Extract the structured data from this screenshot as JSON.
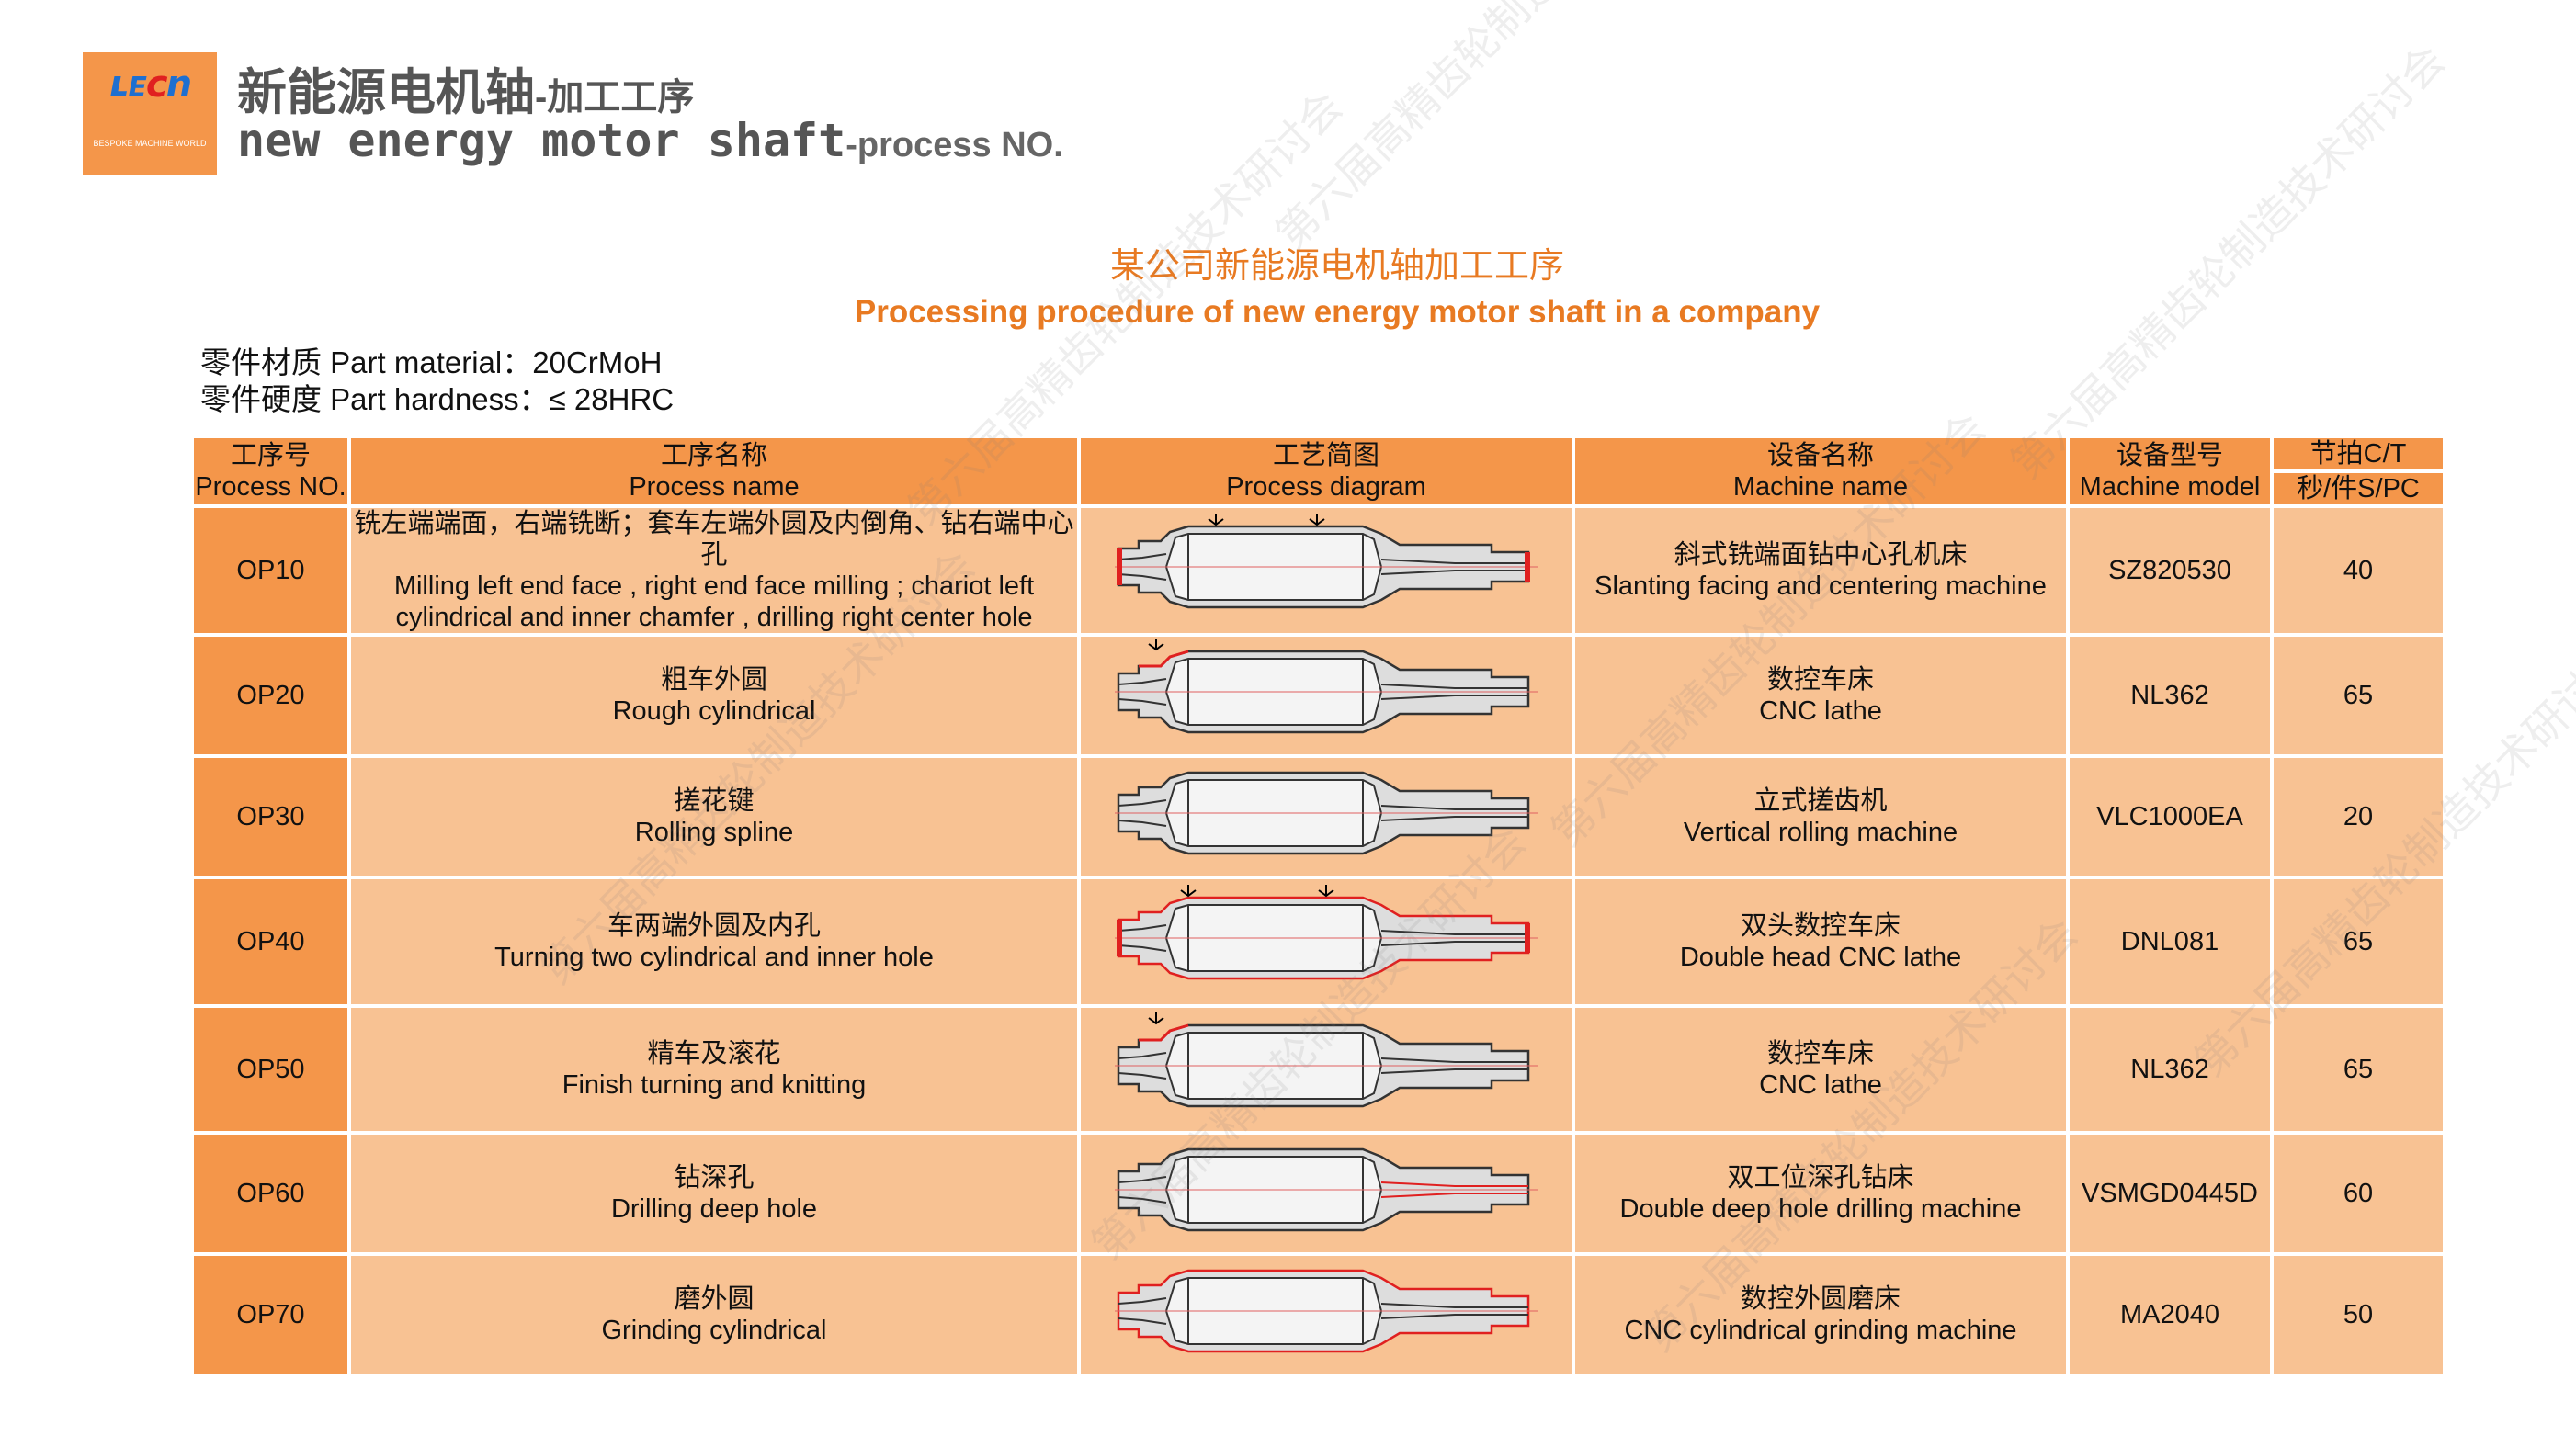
{
  "logo": {
    "brand": "LECN",
    "tagline": "BESPOKE MACHINE WORLD"
  },
  "header": {
    "title_cn": "新能源电机轴",
    "title_cn_suffix": "-加工工序",
    "title_en": "new energy motor shaft",
    "title_en_suffix": "-process NO."
  },
  "center_title": {
    "cn": "某公司新能源电机轴加工工序",
    "en": "Processing procedure of new energy motor shaft  in a company"
  },
  "part_info": {
    "material_label": "零件材质 Part material：",
    "material_value": "20CrMoH",
    "hardness_label": "零件硬度 Part hardness：",
    "hardness_value": "≤ 28HRC"
  },
  "colors": {
    "header": "#f4964a",
    "cell": "#f8c293",
    "accent_text": "#e87a22",
    "highlight": "#e02020"
  },
  "table": {
    "headers": {
      "no_cn": "工序号",
      "no_en": "Process NO.",
      "name_cn": "工序名称",
      "name_en": "Process name",
      "diagram_cn": "工艺简图",
      "diagram_en": "Process diagram",
      "machine_cn": "设备名称",
      "machine_en": "Machine name",
      "model_cn": "设备型号",
      "model_en": "Machine model",
      "ct_top": "节拍C/T",
      "ct_bottom": "秒/件S/PC"
    },
    "rows": [
      {
        "no": "OP10",
        "name_cn": "铣左端端面，右端铣断；套车左端外圆及内倒角、钻右端中心孔",
        "name_en": "Milling left end face , right end face milling ; chariot left cylindrical and inner chamfer , drilling right center hole",
        "machine_cn": "斜式铣端面钻中心孔机床",
        "machine_en": "Slanting facing and centering machine",
        "model": "SZ820530",
        "ct": "40"
      },
      {
        "no": "OP20",
        "name_cn": "粗车外圆",
        "name_en": "Rough cylindrical",
        "machine_cn": "数控车床",
        "machine_en": "CNC lathe",
        "model": "NL362",
        "ct": "65"
      },
      {
        "no": "OP30",
        "name_cn": "搓花键",
        "name_en": "Rolling spline",
        "machine_cn": "立式搓齿机",
        "machine_en": "Vertical rolling machine",
        "model": "VLC1000EA",
        "ct": "20"
      },
      {
        "no": "OP40",
        "name_cn": "车两端外圆及内孔",
        "name_en": "Turning two cylindrical and inner hole",
        "machine_cn": "双头数控车床",
        "machine_en": "Double head CNC lathe",
        "model": "DNL081",
        "ct": "65"
      },
      {
        "no": "OP50",
        "name_cn": "精车及滚花",
        "name_en": "Finish turning and knitting",
        "machine_cn": "数控车床",
        "machine_en": "CNC lathe",
        "model": "NL362",
        "ct": "65"
      },
      {
        "no": "OP60",
        "name_cn": "钻深孔",
        "name_en": "Drilling deep hole",
        "machine_cn": "双工位深孔钻床",
        "machine_en": "Double deep hole drilling machine",
        "model": "VSMGD0445D",
        "ct": "60"
      },
      {
        "no": "OP70",
        "name_cn": "磨外圆",
        "name_en": "Grinding cylindrical",
        "machine_cn": "数控外圆磨床",
        "machine_en": "CNC cylindrical grinding machine",
        "model": "MA2040",
        "ct": "50"
      }
    ]
  },
  "watermark": "第六届高精齿轮制造技术研讨会"
}
